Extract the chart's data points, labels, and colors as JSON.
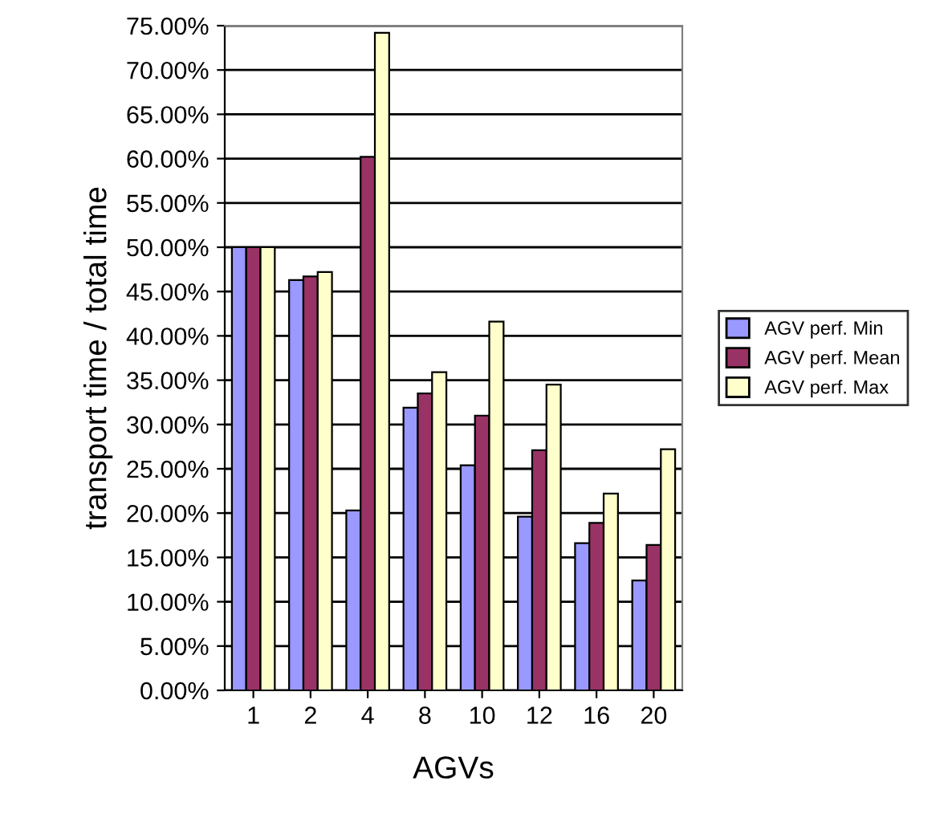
{
  "chart_data": {
    "type": "bar",
    "xlabel": "AGVs",
    "ylabel": "transport time / total time",
    "categories": [
      "1",
      "2",
      "4",
      "8",
      "10",
      "12",
      "16",
      "20"
    ],
    "series": [
      {
        "name": "AGV perf. Min",
        "color": "#9999ff",
        "values": [
          50.0,
          46.3,
          20.3,
          31.9,
          25.4,
          19.6,
          16.6,
          12.4
        ]
      },
      {
        "name": "AGV perf. Mean",
        "color": "#993366",
        "values": [
          50.0,
          46.7,
          60.2,
          33.5,
          31.0,
          27.1,
          18.9,
          16.4
        ]
      },
      {
        "name": "AGV perf. Max",
        "color": "#ffffcc",
        "values": [
          50.0,
          47.2,
          74.2,
          35.9,
          41.6,
          34.5,
          22.2,
          27.2
        ]
      }
    ],
    "ylim": [
      0,
      75
    ],
    "yticks": [
      {
        "value": 0,
        "label": "0.00%"
      },
      {
        "value": 5,
        "label": "5.00%"
      },
      {
        "value": 10,
        "label": "10.00%"
      },
      {
        "value": 15,
        "label": "15.00%"
      },
      {
        "value": 20,
        "label": "20.00%"
      },
      {
        "value": 25,
        "label": "25.00%"
      },
      {
        "value": 30,
        "label": "30.00%"
      },
      {
        "value": 35,
        "label": "35.00%"
      },
      {
        "value": 40,
        "label": "40.00%"
      },
      {
        "value": 45,
        "label": "45.00%"
      },
      {
        "value": 50,
        "label": "50.00%"
      },
      {
        "value": 55,
        "label": "55.00%"
      },
      {
        "value": 60,
        "label": "60.00%"
      },
      {
        "value": 65,
        "label": "65.00%"
      },
      {
        "value": 70,
        "label": "70.00%"
      },
      {
        "value": 75,
        "label": "75.00%"
      }
    ],
    "grid": true,
    "legend": "right"
  }
}
